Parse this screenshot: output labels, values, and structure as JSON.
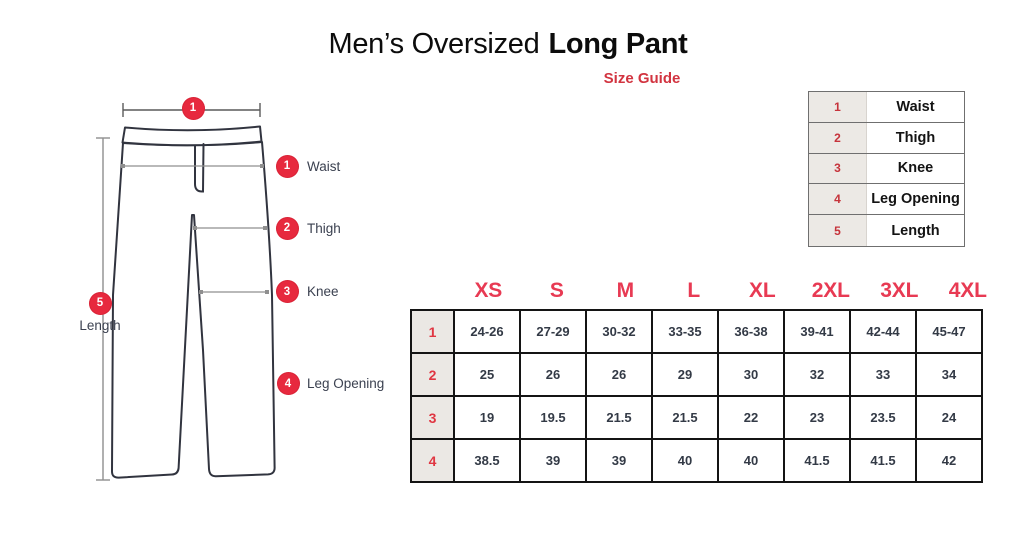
{
  "header": {
    "title_regular": "Men’s Oversized",
    "title_bold": "Long Pant",
    "subtitle": "Size Guide"
  },
  "diagram": {
    "top_circle_num": "1",
    "markers": [
      {
        "num": "1",
        "label": "Waist"
      },
      {
        "num": "2",
        "label": "Thigh"
      },
      {
        "num": "3",
        "label": "Knee"
      },
      {
        "num": "4",
        "label": "Leg Opening"
      },
      {
        "num": "5",
        "label": "Length"
      }
    ]
  },
  "legend": {
    "rows": [
      {
        "num": "1",
        "label": "Waist"
      },
      {
        "num": "2",
        "label": "Thigh"
      },
      {
        "num": "3",
        "label": "Knee"
      },
      {
        "num": "4",
        "label": "Leg Opening"
      },
      {
        "num": "5",
        "label": "Length"
      }
    ]
  },
  "size_table": {
    "sizes": [
      "XS",
      "S",
      "M",
      "L",
      "XL",
      "2XL",
      "3XL",
      "4XL"
    ],
    "rows": [
      {
        "num": "1",
        "values": [
          "24-26",
          "27-29",
          "30-32",
          "33-35",
          "36-38",
          "39-41",
          "42-44",
          "45-47"
        ]
      },
      {
        "num": "2",
        "values": [
          "25",
          "26",
          "26",
          "29",
          "30",
          "32",
          "33",
          "34"
        ]
      },
      {
        "num": "3",
        "values": [
          "19",
          "19.5",
          "21.5",
          "21.5",
          "22",
          "23",
          "23.5",
          "24"
        ]
      },
      {
        "num": "4",
        "values": [
          "38.5",
          "39",
          "39",
          "40",
          "40",
          "41.5",
          "41.5",
          "42"
        ]
      }
    ]
  },
  "colors": {
    "accent_red_header": "#e83a53",
    "circle_red": "#e7293e",
    "subtitle_red": "#d23440",
    "legend_number_red": "#c6333b",
    "table_border_black": "#141414",
    "label_cell_gray": "#ebe8e4"
  }
}
